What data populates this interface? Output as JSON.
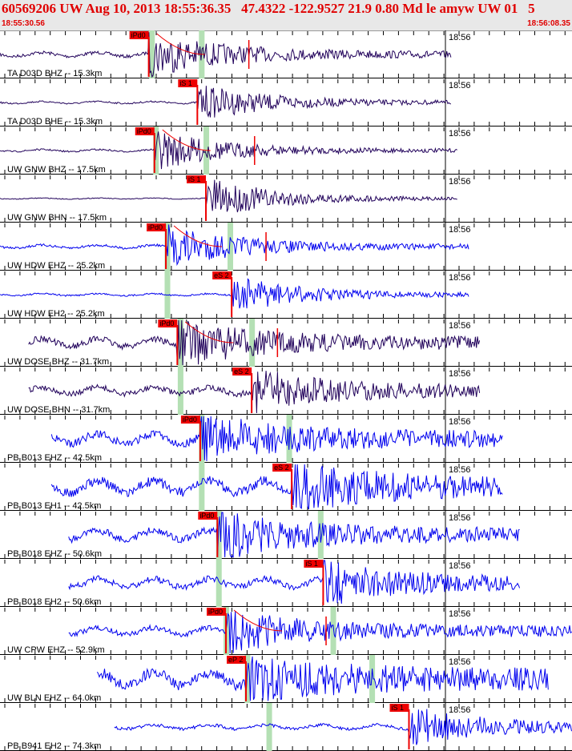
{
  "header": {
    "title": "60569206 UW Aug 10, 2013 18:55:36.35   47.4322 -122.9527 21.9 0.80 Md le amyw UW 01   5",
    "start_time": "18:55:30.56",
    "end_time": "18:56:08.35"
  },
  "minute_label": "18:56",
  "colors": {
    "header_text": "#e00000",
    "trace_dark": "#20005a",
    "trace_blue": "#0000ee",
    "pick": "#ee0000",
    "marker_band": "#b4e0b4"
  },
  "traces": [
    {
      "label": "TA D03D BHZ -- 15.3km",
      "color": "dark",
      "start": 0.0,
      "end": 0.79,
      "p_time": 0.26,
      "pick_label": "iPd0",
      "pick_phase": "P",
      "band1": 0.265,
      "band2": 0.352,
      "amp": 26,
      "base_amp": 4,
      "red_tail": true
    },
    {
      "label": "TA D03D BHE -- 15.3km",
      "color": "dark",
      "start": 0.0,
      "end": 0.79,
      "p_time": 0.345,
      "pick_label": "iS 1",
      "pick_phase": "S",
      "band1": null,
      "band2": null,
      "amp": 22,
      "base_amp": 2,
      "red_tail": false
    },
    {
      "label": "UW GNW BHZ -- 17.5km",
      "color": "dark",
      "start": 0.0,
      "end": 0.8,
      "p_time": 0.27,
      "pick_label": "iPd0",
      "pick_phase": "P",
      "band1": 0.272,
      "band2": 0.36,
      "amp": 24,
      "base_amp": 2,
      "red_tail": true
    },
    {
      "label": "UW GNW BHN -- 17.5km",
      "color": "dark",
      "start": 0.0,
      "end": 0.8,
      "p_time": 0.36,
      "pick_label": "iS 1",
      "pick_phase": "S",
      "band1": null,
      "band2": null,
      "amp": 26,
      "base_amp": 1,
      "red_tail": false
    },
    {
      "label": "UW HDW EHZ -- 25.2km",
      "color": "blue",
      "start": 0.0,
      "end": 0.82,
      "p_time": 0.29,
      "pick_label": "iPd0",
      "pick_phase": "P",
      "band1": 0.292,
      "band2": 0.402,
      "amp": 26,
      "base_amp": 3,
      "red_tail": true
    },
    {
      "label": "UW HDW EH2 -- 25.2km",
      "color": "blue",
      "start": 0.0,
      "end": 0.82,
      "p_time": 0.405,
      "pick_label": "eS 2",
      "pick_phase": "S",
      "band1": 0.292,
      "band2": null,
      "amp": 22,
      "base_amp": 2,
      "red_tail": false
    },
    {
      "label": "UW DOSE BHZ -- 31.7km",
      "color": "dark",
      "start": 0.05,
      "end": 0.84,
      "p_time": 0.31,
      "pick_label": "iPd0",
      "pick_phase": "P",
      "band1": 0.315,
      "band2": 0.44,
      "amp": 26,
      "base_amp": 8,
      "red_tail": true
    },
    {
      "label": "UW DOSE BHN -- 31.7km",
      "color": "dark",
      "start": 0.05,
      "end": 0.84,
      "p_time": 0.44,
      "pick_label": "eS 2",
      "pick_phase": "S",
      "band1": 0.315,
      "band2": null,
      "amp": 24,
      "base_amp": 7,
      "red_tail": false
    },
    {
      "label": "PB B013 EHZ -- 42.5km",
      "color": "blue",
      "start": 0.09,
      "end": 0.88,
      "p_time": 0.35,
      "pick_label": "iPd0",
      "pick_phase": "P",
      "band1": 0.352,
      "band2": 0.505,
      "amp": 26,
      "base_amp": 10,
      "red_tail": false
    },
    {
      "label": "PB B013 EH1 -- 42.5km",
      "color": "blue",
      "start": 0.09,
      "end": 0.88,
      "p_time": 0.51,
      "pick_label": "eS 2",
      "pick_phase": "S",
      "band1": 0.352,
      "band2": null,
      "amp": 26,
      "base_amp": 12,
      "red_tail": false
    },
    {
      "label": "PB B018 EHZ -- 50.6km",
      "color": "blue",
      "start": 0.12,
      "end": 0.91,
      "p_time": 0.38,
      "pick_label": "iPd0",
      "pick_phase": "P",
      "band1": 0.382,
      "band2": 0.56,
      "amp": 26,
      "base_amp": 9,
      "red_tail": false
    },
    {
      "label": "PB B018 EH2 -- 50.6km",
      "color": "blue",
      "start": 0.12,
      "end": 0.91,
      "p_time": 0.565,
      "pick_label": "iS 1",
      "pick_phase": "S",
      "band1": 0.382,
      "band2": null,
      "amp": 24,
      "base_amp": 8,
      "red_tail": false
    },
    {
      "label": "UW CPW EHZ -- 52.9km",
      "color": "blue",
      "start": 0.12,
      "end": 1.0,
      "p_time": 0.395,
      "pick_label": "iPd0",
      "pick_phase": "P",
      "band1": 0.395,
      "band2": 0.582,
      "amp": 24,
      "base_amp": 7,
      "red_tail": true
    },
    {
      "label": "UW BLN EHZ -- 64.0km",
      "color": "blue",
      "start": 0.17,
      "end": 0.96,
      "p_time": 0.43,
      "pick_label": "eP 2",
      "pick_phase": "P",
      "band1": 0.432,
      "band2": 0.65,
      "amp": 22,
      "base_amp": 14,
      "red_tail": false
    },
    {
      "label": "PB B941 EH2 -- 74.3km",
      "color": "blue",
      "start": 0.2,
      "end": 1.0,
      "p_time": 0.715,
      "pick_label": "iS 1",
      "pick_phase": "S",
      "band1": 0.47,
      "band2": null,
      "amp": 24,
      "base_amp": 4,
      "red_tail": false
    }
  ]
}
